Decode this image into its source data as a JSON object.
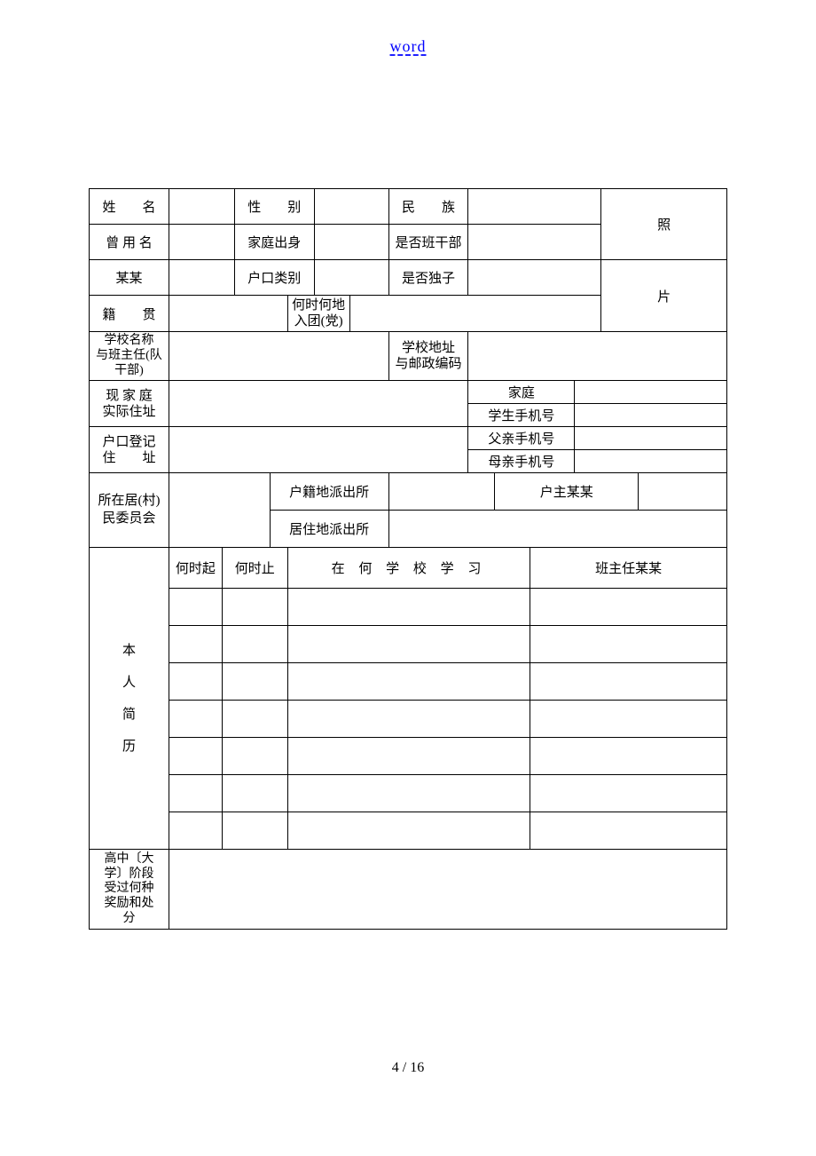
{
  "header": {
    "link_text": "word"
  },
  "footer": {
    "page_indicator": "4 / 16"
  },
  "colors": {
    "link": "#0000ff",
    "border": "#000000",
    "text": "#000000",
    "background": "#ffffff"
  },
  "typography": {
    "body_font": "SimSun",
    "label_fontsize": 15,
    "header_fontsize": 18
  },
  "form": {
    "row1": {
      "name_label": "姓　　名",
      "gender_label": "性　　别",
      "ethnicity_label": "民　　族"
    },
    "row2": {
      "former_name_label": "曾 用 名",
      "family_origin_label": "家庭出身",
      "is_cadre_label": "是否班干部"
    },
    "row3": {
      "someone_label": "某某",
      "hukou_type_label": "户口类别",
      "is_only_child_label": "是否独子"
    },
    "photo_label_top": "照",
    "photo_label_bottom": "片",
    "row4": {
      "native_place_label": "籍　　贯",
      "join_party_label": "何时何地\n入团(党)"
    },
    "row5": {
      "school_name_label": "学校名称\n与班主任(队\n干部)",
      "school_addr_label": "学校地址\n与邮政编码"
    },
    "row6": {
      "home_addr_label": "现 家 庭\n实际住址",
      "family_label": "家庭",
      "student_phone_label": "学生手机号"
    },
    "row7": {
      "hukou_addr_label": "户口登记\n住　　址",
      "father_phone_label": "父亲手机号",
      "mother_phone_label": "母亲手机号"
    },
    "row8": {
      "committee_label": "所在居(村)\n民委员会",
      "hukou_police_label": "户籍地派出所",
      "householder_label": "户主某某",
      "residence_police_label": "居住地派出所"
    },
    "history": {
      "section_label": "本\n人\n简\n历",
      "from_label": "何时起",
      "to_label": "何时止",
      "school_label": "在 何 学 校 学 习",
      "teacher_label": "班主任某某"
    },
    "awards": {
      "label": "高中〔大\n学〕阶段\n受过何种\n奖励和处\n分"
    }
  }
}
